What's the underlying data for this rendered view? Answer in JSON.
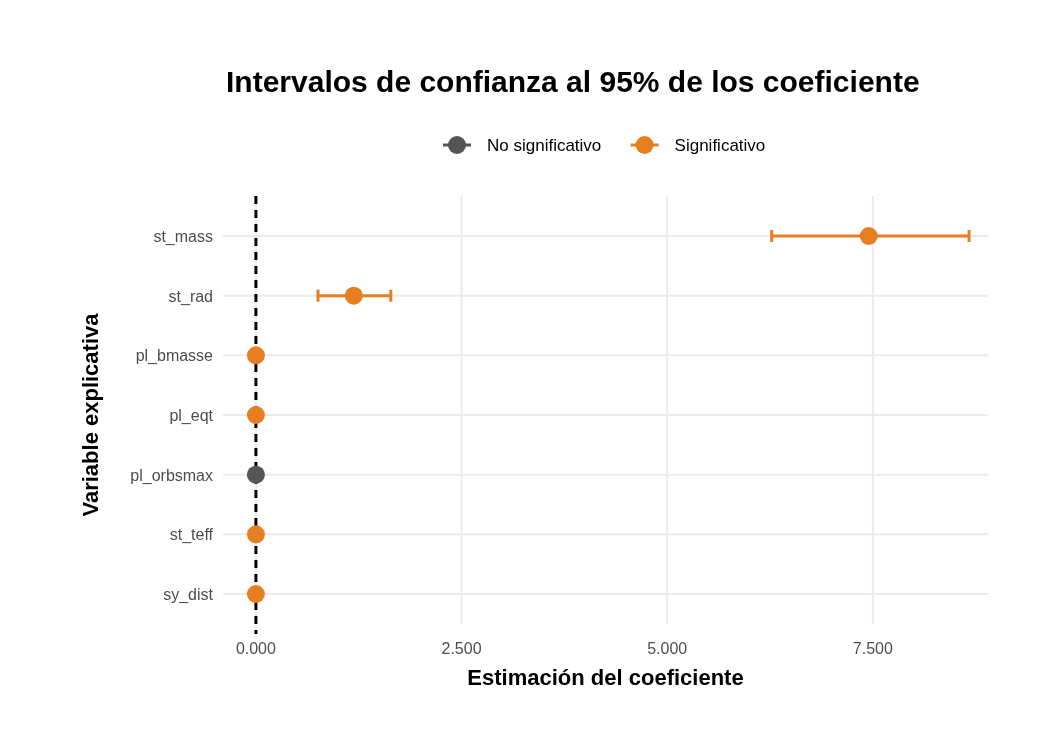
{
  "chart_data": {
    "type": "scatter",
    "orientation": "horizontal",
    "title": "Intervalos de confianza al 95% de los coeficiente",
    "xlabel": "Estimación del coeficiente",
    "ylabel": "Variable explicativa",
    "categories": [
      "st_mass",
      "st_rad",
      "pl_bmasse",
      "pl_eqt",
      "pl_orbsmax",
      "st_teff",
      "sy_dist"
    ],
    "series": [
      {
        "name": "No significativo",
        "color": "#555555",
        "values": [
          null,
          null,
          null,
          null,
          0,
          null,
          null
        ]
      },
      {
        "name": "Significativo",
        "color": "#e67e22",
        "values": [
          7.45,
          1.19,
          0,
          0,
          null,
          0,
          0
        ],
        "errors": [
          [
            6.27,
            8.67
          ],
          [
            0.755,
            1.64
          ],
          null,
          null,
          null,
          null,
          null
        ]
      }
    ],
    "xlim": [
      -0.4,
      8.9
    ],
    "xticks": [
      {
        "value": 0,
        "label": "0.000"
      },
      {
        "value": 2.5,
        "label": "2.500"
      },
      {
        "value": 5,
        "label": "5.000"
      },
      {
        "value": 7.5,
        "label": "7.500"
      }
    ],
    "ref_lines": [
      {
        "axis": "x",
        "value": 0,
        "line_style": "dashed",
        "color": "#000000"
      }
    ],
    "grid": true,
    "legend": "top",
    "marker": "circle"
  }
}
